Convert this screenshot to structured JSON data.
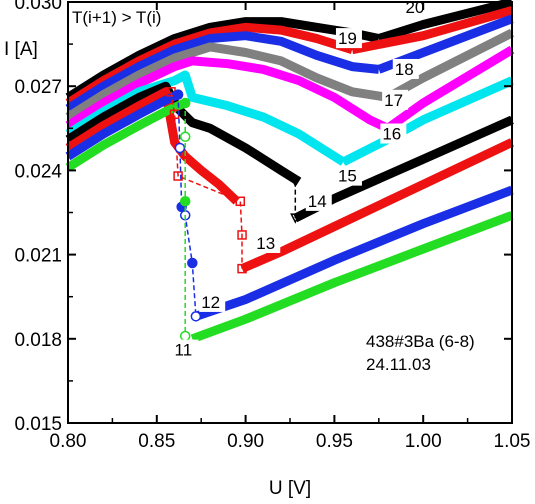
{
  "chart_data": {
    "type": "line",
    "xlabel": "U [V]",
    "ylabel": "I [A]",
    "xlim": [
      0.8,
      1.05
    ],
    "ylim": [
      0.015,
      0.03
    ],
    "xticks": [
      "0.80",
      "0.85",
      "0.90",
      "0.95",
      "1.00",
      "1.05"
    ],
    "yticks": [
      "0.015",
      "0.018",
      "0.021",
      "0.024",
      "0.027",
      "0.030"
    ],
    "annotations": {
      "condition": "T(i+1) > T(i)",
      "sample": "438#3Ba (6-8)",
      "date": "24.11.03"
    },
    "series": [
      {
        "name": "11",
        "color": "#22dd22",
        "x": [
          0.8,
          0.82,
          0.84,
          0.855,
          0.862,
          0.866
        ],
        "y": [
          0.0241,
          0.0249,
          0.0256,
          0.0261,
          0.0263,
          0.0264
        ],
        "jump_x": [
          0.866,
          0.866,
          0.866,
          0.866
        ],
        "jump_y": [
          0.0264,
          0.0252,
          0.0229,
          0.0181
        ],
        "x2": [
          0.87,
          0.9,
          0.95,
          1.0,
          1.05
        ],
        "y2": [
          0.018,
          0.0187,
          0.02,
          0.0212,
          0.0224
        ]
      },
      {
        "name": "12",
        "color": "#1a2ee6",
        "x": [
          0.8,
          0.82,
          0.84,
          0.855,
          0.862
        ],
        "y": [
          0.0245,
          0.0253,
          0.026,
          0.0265,
          0.0267
        ],
        "jump_x": [
          0.862,
          0.863,
          0.864,
          0.866,
          0.87,
          0.872
        ],
        "jump_y": [
          0.0267,
          0.0248,
          0.0227,
          0.0224,
          0.0207,
          0.0188
        ],
        "x2": [
          0.872,
          0.9,
          0.95,
          1.0,
          1.05
        ],
        "y2": [
          0.0188,
          0.0194,
          0.0208,
          0.0221,
          0.0233
        ]
      },
      {
        "name": "13",
        "color": "#ee1111",
        "x": [
          0.8,
          0.82,
          0.84,
          0.855,
          0.86,
          0.866,
          0.875,
          0.885,
          0.895
        ],
        "y": [
          0.0248,
          0.0256,
          0.0263,
          0.0268,
          0.025,
          0.0245,
          0.024,
          0.0235,
          0.0229
        ],
        "jump_x": [
          0.858,
          0.86,
          0.862,
          0.897,
          0.898,
          0.898
        ],
        "jump_y": [
          0.0268,
          0.026,
          0.0238,
          0.0229,
          0.0217,
          0.0205
        ],
        "x2": [
          0.898,
          0.92,
          0.95,
          1.0,
          1.05
        ],
        "y2": [
          0.0205,
          0.0211,
          0.022,
          0.0235,
          0.025
        ]
      },
      {
        "name": "14",
        "color": "#000000",
        "x": [
          0.8,
          0.82,
          0.84,
          0.855,
          0.862,
          0.87,
          0.88,
          0.9,
          0.92,
          0.93
        ],
        "y": [
          0.0251,
          0.0259,
          0.0266,
          0.027,
          0.0262,
          0.0257,
          0.0255,
          0.0248,
          0.024,
          0.0236
        ],
        "jump_x": [
          0.928,
          0.928
        ],
        "jump_y": [
          0.0236,
          0.0223
        ],
        "x2": [
          0.928,
          0.95,
          1.0,
          1.05
        ],
        "y2": [
          0.0223,
          0.023,
          0.0244,
          0.0258
        ]
      },
      {
        "name": "15",
        "color": "#00e5ee",
        "x": [
          0.8,
          0.82,
          0.84,
          0.86,
          0.866,
          0.87,
          0.89,
          0.91,
          0.93,
          0.955
        ],
        "y": [
          0.0253,
          0.0261,
          0.0268,
          0.0272,
          0.0274,
          0.0266,
          0.0263,
          0.0259,
          0.0253,
          0.0243
        ],
        "x2": [
          0.955,
          0.98,
          1.0,
          1.05
        ],
        "y2": [
          0.0243,
          0.0251,
          0.0258,
          0.0272
        ]
      },
      {
        "name": "16",
        "color": "#ff00ff",
        "x": [
          0.8,
          0.82,
          0.84,
          0.86,
          0.87,
          0.89,
          0.91,
          0.93,
          0.95,
          0.97,
          0.98
        ],
        "y": [
          0.0256,
          0.0264,
          0.0271,
          0.0277,
          0.0279,
          0.0278,
          0.0276,
          0.0272,
          0.0266,
          0.0258,
          0.0255
        ],
        "x2": [
          0.98,
          1.0,
          1.05
        ],
        "y2": [
          0.0255,
          0.0264,
          0.0283
        ]
      },
      {
        "name": "17",
        "color": "#808080",
        "x": [
          0.8,
          0.82,
          0.84,
          0.86,
          0.88,
          0.9,
          0.92,
          0.94,
          0.96,
          0.98
        ],
        "y": [
          0.0259,
          0.0267,
          0.0274,
          0.028,
          0.0284,
          0.0282,
          0.0279,
          0.0273,
          0.0268,
          0.0266
        ],
        "x2": [
          0.98,
          1.0,
          1.05
        ],
        "y2": [
          0.0266,
          0.0273,
          0.0289
        ]
      },
      {
        "name": "18",
        "color": "#1a2ee6",
        "x": [
          0.8,
          0.82,
          0.84,
          0.86,
          0.88,
          0.9,
          0.92,
          0.94,
          0.96,
          0.975
        ],
        "y": [
          0.0262,
          0.027,
          0.0277,
          0.0283,
          0.0287,
          0.0288,
          0.0286,
          0.0281,
          0.0277,
          0.0276
        ],
        "x2": [
          0.975,
          1.0,
          1.05
        ],
        "y2": [
          0.0276,
          0.0282,
          0.0294
        ]
      },
      {
        "name": "19",
        "color": "#ee1111",
        "x": [
          0.8,
          0.82,
          0.84,
          0.86,
          0.88,
          0.9,
          0.92,
          0.94,
          0.96
        ],
        "y": [
          0.0264,
          0.0272,
          0.0279,
          0.0285,
          0.0289,
          0.0291,
          0.029,
          0.0287,
          0.0283
        ],
        "x2": [
          0.96,
          1.0,
          1.05
        ],
        "y2": [
          0.0283,
          0.0288,
          0.0297
        ]
      },
      {
        "name": "20",
        "color": "#000000",
        "x": [
          0.8,
          0.82,
          0.84,
          0.86,
          0.88,
          0.9,
          0.92,
          0.94,
          0.96,
          0.975
        ],
        "y": [
          0.0266,
          0.0274,
          0.0281,
          0.0287,
          0.0291,
          0.0293,
          0.0293,
          0.0291,
          0.0289,
          0.0287
        ],
        "x2": [
          0.975,
          1.0,
          1.05
        ],
        "y2": [
          0.0287,
          0.0292,
          0.03
        ]
      }
    ]
  }
}
